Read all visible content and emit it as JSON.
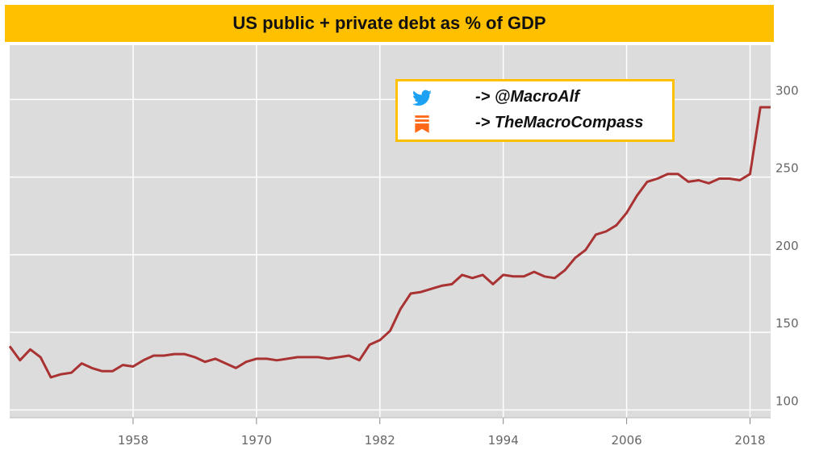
{
  "title": "US public + private debt as % of GDP",
  "legend": {
    "twitter_icon": "twitter-bird-icon",
    "twitter_text": "-> @MacroAlf",
    "substack_icon": "substack-icon",
    "substack_text": "-> TheMacroCompass"
  },
  "colors": {
    "title_bg": "#ffc000",
    "plot_bg": "#dcdcdc",
    "line": "#a93232",
    "twitter": "#1da1f2",
    "substack": "#ff6719"
  },
  "chart_data": {
    "type": "line",
    "title": "US public + private debt as % of GDP",
    "xlabel": "",
    "ylabel": "",
    "xlim": [
      1946,
      2020
    ],
    "ylim": [
      95,
      335
    ],
    "x_ticks": [
      1958,
      1970,
      1982,
      1994,
      2006,
      2018
    ],
    "y_ticks": [
      100,
      150,
      200,
      250,
      300
    ],
    "grid": true,
    "y_axis_side": "right",
    "series": [
      {
        "x": [
          1946,
          1947,
          1948,
          1949,
          1950,
          1951,
          1952,
          1953,
          1954,
          1955,
          1956,
          1957,
          1958,
          1959,
          1960,
          1961,
          1962,
          1963,
          1964,
          1965,
          1966,
          1967,
          1968,
          1969,
          1970,
          1971,
          1972,
          1973,
          1974,
          1975,
          1976,
          1977,
          1978,
          1979,
          1980,
          1981,
          1982,
          1983,
          1984,
          1985,
          1986,
          1987,
          1988,
          1989,
          1990,
          1991,
          1992,
          1993,
          1994,
          1995,
          1996,
          1997,
          1998,
          1999,
          2000,
          2001,
          2002,
          2003,
          2004,
          2005,
          2006,
          2007,
          2008,
          2009,
          2010,
          2011,
          2012,
          2013,
          2014,
          2015,
          2016,
          2017,
          2018,
          2019,
          2020
        ],
        "values": [
          141,
          132,
          139,
          134,
          121,
          123,
          124,
          130,
          127,
          125,
          125,
          129,
          128,
          132,
          135,
          135,
          136,
          136,
          134,
          131,
          133,
          130,
          127,
          131,
          133,
          133,
          132,
          133,
          134,
          134,
          134,
          133,
          134,
          135,
          132,
          142,
          145,
          151,
          165,
          175,
          176,
          178,
          180,
          181,
          187,
          185,
          187,
          181,
          187,
          186,
          186,
          189,
          186,
          185,
          190,
          198,
          203,
          213,
          215,
          219,
          227,
          238,
          247,
          249,
          252,
          252,
          247,
          248,
          246,
          249,
          249,
          248,
          252,
          295,
          295
        ]
      }
    ]
  }
}
